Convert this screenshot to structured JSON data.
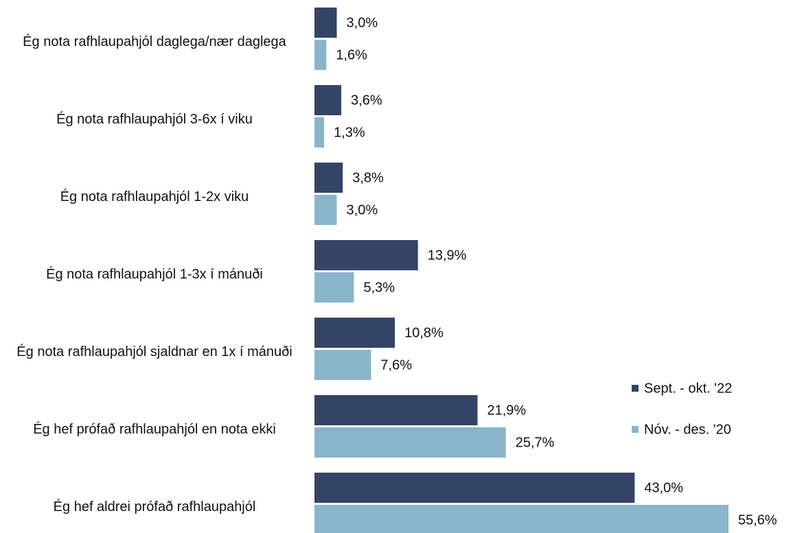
{
  "chart_data": {
    "type": "bar",
    "orientation": "horizontal",
    "categories": [
      "Ég nota rafhlaupahjól daglega/nær daglega",
      "Ég nota rafhlaupahjól 3-6x í viku",
      "Ég nota rafhlaupahjól 1-2x viku",
      "Ég nota rafhlaupahjól 1-3x í mánuði",
      "Ég nota rafhlaupahjól sjaldnar en 1x í mánuði",
      "Ég hef prófað rafhlaupahjól en nota ekki",
      "Ég hef aldrei prófað rafhlaupahjól"
    ],
    "series": [
      {
        "name": "Sept. - okt. '22",
        "color": "#334466",
        "values": [
          3.0,
          3.6,
          3.8,
          13.9,
          10.8,
          21.9,
          43.0
        ],
        "value_labels": [
          "3,0%",
          "3,6%",
          "3,8%",
          "13,9%",
          "10,8%",
          "21,9%",
          "43,0%"
        ]
      },
      {
        "name": "Nóv. - des. '20",
        "color": "#89b5cb",
        "values": [
          1.6,
          1.3,
          3.0,
          5.3,
          7.6,
          25.7,
          55.6
        ],
        "value_labels": [
          "1,6%",
          "1,3%",
          "3,0%",
          "5,3%",
          "7,6%",
          "25,7%",
          "55,6%"
        ]
      }
    ],
    "legend": "right"
  }
}
